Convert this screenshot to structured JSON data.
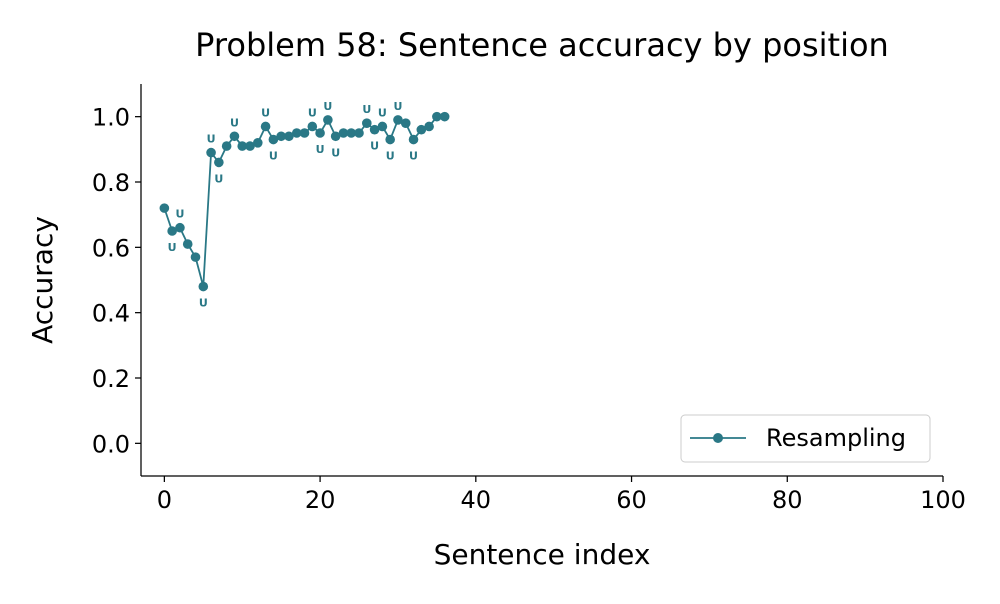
{
  "chart_data": {
    "type": "line",
    "title": "Problem 58: Sentence accuracy by position",
    "xlabel": "Sentence index",
    "ylabel": "Accuracy",
    "xlim": [
      -3,
      100
    ],
    "ylim": [
      -0.1,
      1.1
    ],
    "xticks": [
      0,
      20,
      40,
      60,
      80,
      100
    ],
    "yticks": [
      0.0,
      0.2,
      0.4,
      0.6,
      0.8,
      1.0
    ],
    "ytick_labels": [
      "0.0",
      "0.2",
      "0.4",
      "0.6",
      "0.8",
      "1.0"
    ],
    "grid": false,
    "legend_position": "bottom-right",
    "series": [
      {
        "name": "Resampling",
        "color": "#2a7886",
        "marker": "circle",
        "x": [
          0,
          1,
          2,
          3,
          4,
          5,
          6,
          7,
          8,
          9,
          10,
          11,
          12,
          13,
          14,
          15,
          16,
          17,
          18,
          19,
          20,
          21,
          22,
          23,
          24,
          25,
          26,
          27,
          28,
          29,
          30,
          31,
          32,
          33,
          34,
          35,
          36
        ],
        "y": [
          0.72,
          0.65,
          0.66,
          0.61,
          0.57,
          0.48,
          0.89,
          0.86,
          0.91,
          0.94,
          0.91,
          0.91,
          0.92,
          0.97,
          0.93,
          0.94,
          0.94,
          0.95,
          0.95,
          0.97,
          0.95,
          0.99,
          0.94,
          0.95,
          0.95,
          0.95,
          0.98,
          0.96,
          0.97,
          0.93,
          0.99,
          0.98,
          0.93,
          0.96,
          0.97,
          1.0,
          1.0
        ]
      }
    ],
    "annotations": {
      "text": "U",
      "color": "#2a7886",
      "points": [
        {
          "x": 1,
          "side": "below"
        },
        {
          "x": 2,
          "side": "above"
        },
        {
          "x": 5,
          "side": "below"
        },
        {
          "x": 6,
          "side": "above"
        },
        {
          "x": 7,
          "side": "below"
        },
        {
          "x": 9,
          "side": "above"
        },
        {
          "x": 13,
          "side": "above"
        },
        {
          "x": 14,
          "side": "below"
        },
        {
          "x": 19,
          "side": "above"
        },
        {
          "x": 20,
          "side": "below"
        },
        {
          "x": 21,
          "side": "above"
        },
        {
          "x": 22,
          "side": "below"
        },
        {
          "x": 26,
          "side": "above"
        },
        {
          "x": 27,
          "side": "below"
        },
        {
          "x": 28,
          "side": "above"
        },
        {
          "x": 29,
          "side": "below"
        },
        {
          "x": 30,
          "side": "above"
        },
        {
          "x": 32,
          "side": "below"
        }
      ]
    }
  }
}
